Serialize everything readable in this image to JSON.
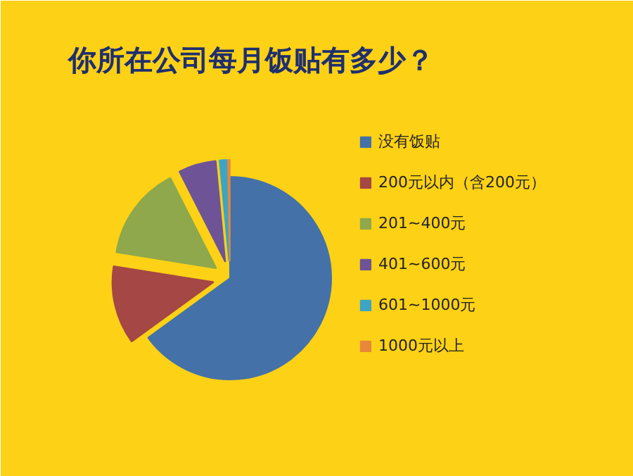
{
  "chart_data": {
    "type": "pie",
    "title": "你所在公司每月饭贴有多少？",
    "categories": [
      "没有饭贴",
      "200元以内（含200元）",
      "201~400元",
      "401~600元",
      "601~1000元",
      "1000元以上"
    ],
    "values": [
      65,
      12.5,
      15,
      6,
      1.2,
      0.3
    ],
    "colors": [
      "#4472a8",
      "#a54745",
      "#8ea84b",
      "#6e5497",
      "#3ea4c4",
      "#e8883a"
    ],
    "legend": "right"
  }
}
